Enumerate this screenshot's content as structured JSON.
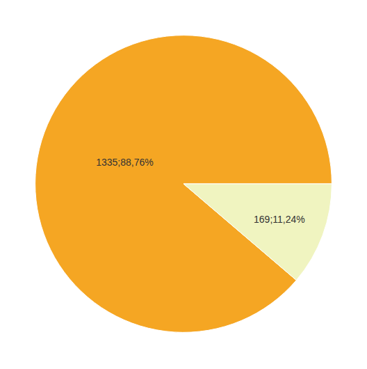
{
  "chart_data": {
    "type": "pie",
    "values": [
      88.76,
      11.24
    ],
    "value_labels": [
      "1335;88,76%",
      "169;11,24%"
    ],
    "colors": [
      "#F5A623",
      "#F0F4C0"
    ],
    "data_labels": true
  }
}
